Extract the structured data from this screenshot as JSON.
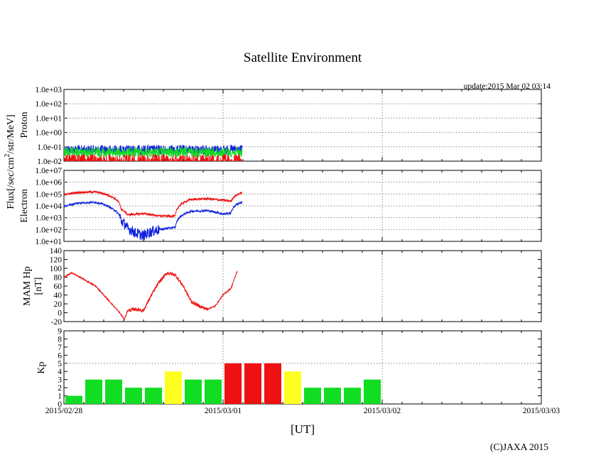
{
  "title": "Satellite Environment",
  "update_text": "update:2015 Mar 02 03:14",
  "copyright": "(C)JAXA 2015",
  "x_axis": {
    "label": "[UT]",
    "ticks": [
      "2015/02/28",
      "2015/03/01",
      "2015/03/02",
      "2015/03/03"
    ],
    "range_days": [
      0,
      3
    ],
    "data_end_days": 1.12
  },
  "flux_label": {
    "main": "Flux[/sec/cm",
    "sup": "2",
    "rest": "/str/MeV]"
  },
  "colors": {
    "red": "#ee1111",
    "blue": "#1122dd",
    "green": "#11dd22",
    "yellow": "#ffff22",
    "grid": "#888888"
  },
  "chart_data": [
    {
      "type": "line",
      "name": "Proton",
      "ylabel": "Proton",
      "yscale": "log",
      "ylim": [
        0.01,
        1000
      ],
      "yticks": [
        "1.0e-02",
        "1.0e-01",
        "1.0e+00",
        "1.0e+01",
        "1.0e+02",
        "1.0e+03"
      ],
      "series": [
        {
          "name": "proton-blue",
          "color": "#1122dd",
          "x": [
            0,
            0.5,
            1.0,
            1.12
          ],
          "y": [
            0.06,
            0.06,
            0.06,
            0.06
          ]
        },
        {
          "name": "proton-green",
          "color": "#11dd22",
          "x": [
            0,
            0.5,
            1.0,
            1.12
          ],
          "y": [
            0.04,
            0.04,
            0.04,
            0.04
          ]
        },
        {
          "name": "proton-red",
          "color": "#ee1111",
          "x": [
            0,
            0.5,
            1.0,
            1.12
          ],
          "y": [
            0.02,
            0.02,
            0.02,
            0.02
          ]
        }
      ]
    },
    {
      "type": "line",
      "name": "Electron",
      "ylabel": "Electron",
      "yscale": "log",
      "ylim": [
        10,
        10000000
      ],
      "yticks": [
        "1.0e+01",
        "1.0e+02",
        "1.0e+03",
        "1.0e+04",
        "1.0e+05",
        "1.0e+06",
        "1.0e+07"
      ],
      "series": [
        {
          "name": "electron-red",
          "color": "#ee1111",
          "x": [
            0,
            0.1,
            0.2,
            0.3,
            0.36,
            0.4,
            0.5,
            0.6,
            0.7,
            0.8,
            0.9,
            1.0,
            1.05,
            1.09,
            1.12
          ],
          "y": [
            90000,
            140000,
            150000,
            60000,
            5000,
            1800,
            2200,
            1400,
            1400,
            35000,
            40000,
            30000,
            25000,
            90000,
            130000
          ]
        },
        {
          "name": "electron-blue",
          "color": "#1122dd",
          "x": [
            0,
            0.1,
            0.2,
            0.3,
            0.36,
            0.4,
            0.45,
            0.5,
            0.6,
            0.7,
            0.8,
            0.9,
            1.0,
            1.05,
            1.09,
            1.12
          ],
          "y": [
            9000,
            18000,
            20000,
            6000,
            500,
            120,
            50,
            30,
            100,
            150,
            3500,
            4000,
            2000,
            2500,
            15000,
            20000
          ]
        }
      ]
    },
    {
      "type": "line",
      "name": "MAM Hp",
      "ylabel": "MAM Hp [nT]",
      "yscale": "linear",
      "ylim": [
        -20,
        140
      ],
      "yticks": [
        "-20",
        "0",
        "20",
        "40",
        "60",
        "80",
        "100",
        "120",
        "140"
      ],
      "series": [
        {
          "name": "hp-red",
          "color": "#ee1111",
          "x": [
            0,
            0.05,
            0.1,
            0.2,
            0.3,
            0.35,
            0.38,
            0.4,
            0.45,
            0.5,
            0.55,
            0.6,
            0.65,
            0.7,
            0.75,
            0.8,
            0.85,
            0.9,
            0.95,
            1.0,
            1.05,
            1.09
          ],
          "y": [
            80,
            90,
            80,
            60,
            20,
            0,
            -15,
            5,
            8,
            5,
            40,
            70,
            90,
            85,
            60,
            25,
            15,
            8,
            15,
            40,
            55,
            95
          ]
        }
      ]
    },
    {
      "type": "bar",
      "name": "Kp",
      "ylabel": "Kp",
      "ylim": [
        0,
        9
      ],
      "yticks": [
        "0",
        "1",
        "2",
        "3",
        "4",
        "5",
        "6",
        "7",
        "8",
        "9"
      ],
      "categories_hours": [
        0,
        3,
        6,
        9,
        12,
        15,
        18,
        21,
        24,
        27,
        30,
        33,
        36,
        39,
        42,
        45,
        48
      ],
      "values": [
        1,
        3,
        3,
        2,
        2,
        4,
        3,
        3,
        5,
        5,
        5,
        4,
        2,
        2,
        2,
        3
      ],
      "bar_colors": [
        "green",
        "green",
        "green",
        "green",
        "green",
        "yellow",
        "green",
        "green",
        "red",
        "red",
        "red",
        "yellow",
        "green",
        "green",
        "green",
        "green"
      ]
    }
  ]
}
